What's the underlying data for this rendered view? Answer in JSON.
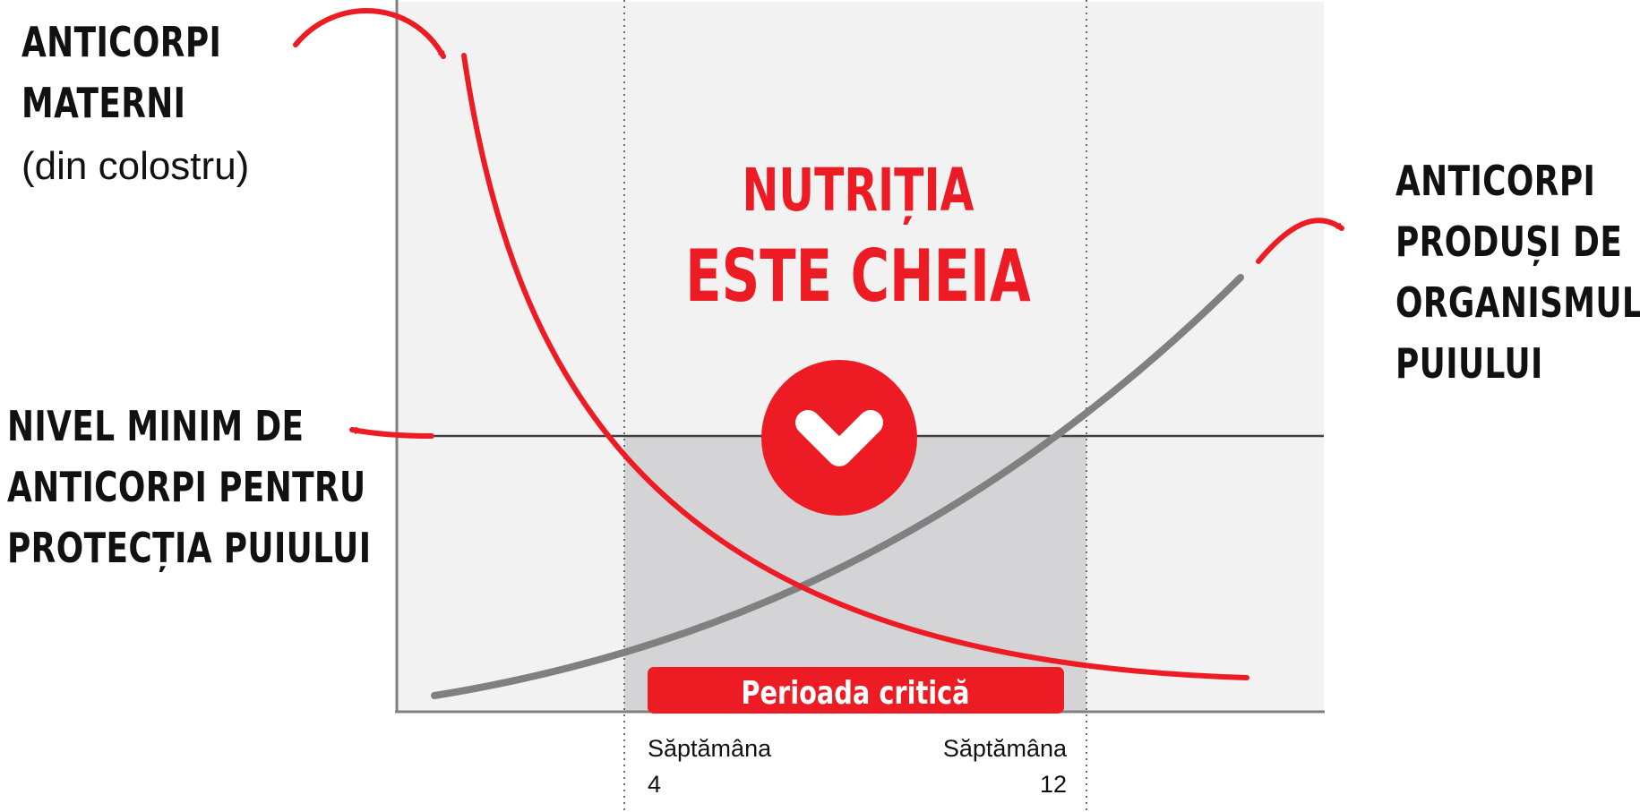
{
  "labels": {
    "maternal": {
      "line1": "ANTICORPI",
      "line2": "MATERNI",
      "line3": "(din colostru)"
    },
    "produced": {
      "line1": "ANTICORPI",
      "line2": "PRODUȘI DE",
      "line3": "ORGANISMUL",
      "line4": "PUIULUI"
    },
    "threshold": {
      "line1": "NIVEL MINIM DE",
      "line2": "ANTICORPI PENTRU",
      "line3": "PROTECȚIA PUIULUI"
    },
    "headline": {
      "line1": "NUTRIȚIA",
      "line2": "ESTE CHEIA"
    },
    "critical_period": "Perioada critică",
    "week_start": {
      "word": "Săptămâna",
      "number": "4"
    },
    "week_end": {
      "word": "Săptămâna",
      "number": "12"
    }
  },
  "icons": {
    "badge": "chevron-down-icon"
  },
  "colors": {
    "accent_red": "#ED1C24",
    "curve_gray": "#808080",
    "panel_light": "#F2F2F2",
    "panel_critical": "#D4D4D6",
    "text_dark": "#111111"
  }
}
